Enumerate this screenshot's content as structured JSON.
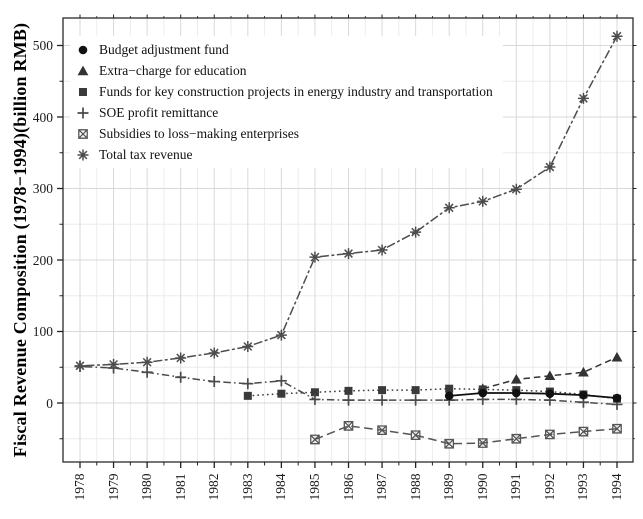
{
  "figure": {
    "background": "#ffffff",
    "ink_color": "#2b2b2b",
    "border_color": "#3a3a3a",
    "grid_major_color": "#d9d9d9",
    "grid_minor_color": "#ececec",
    "tick_color": "#222222"
  },
  "chart_data": {
    "type": "line",
    "title": "",
    "xlabel": "",
    "ylabel": "Fiscal Revenue Composition (1978−1994)(billion RMB)",
    "years": [
      1978,
      1979,
      1980,
      1981,
      1982,
      1983,
      1984,
      1985,
      1986,
      1987,
      1988,
      1989,
      1990,
      1991,
      1992,
      1993,
      1994
    ],
    "x_tick_labels": [
      "1978",
      "1979",
      "1980",
      "1981",
      "1982",
      "1983",
      "1984",
      "1985",
      "1986",
      "1987",
      "1988",
      "1989",
      "1990",
      "1991",
      "1992",
      "1993",
      "1994"
    ],
    "y_tick_labels": [
      "0",
      "100",
      "200",
      "300",
      "400",
      "500"
    ],
    "y_major_ticks": [
      0,
      100,
      200,
      300,
      400,
      500
    ],
    "y_minor_ticks": [
      -50,
      50,
      150,
      250,
      350,
      450
    ],
    "ylim": [
      -82,
      539
    ],
    "grid": "major+minor",
    "legend_position": "top-left-inside",
    "series": [
      {
        "name": "Budget adjustment fund",
        "marker": "circle",
        "linestyle": "solid",
        "color": "#111111",
        "x": [
          1989,
          1990,
          1991,
          1992,
          1993,
          1994
        ],
        "values": [
          10,
          14,
          14,
          13,
          11,
          7
        ]
      },
      {
        "name": "Extra−charge for education",
        "marker": "triangle",
        "linestyle": "dashed",
        "color": "#333333",
        "x": [
          1990,
          1991,
          1992,
          1993,
          1994
        ],
        "values": [
          20,
          33,
          38,
          43,
          64
        ]
      },
      {
        "name": "Funds for key construction projects in energy industry and transportation",
        "marker": "square",
        "linestyle": "dotted",
        "color": "#3a3a3a",
        "x": [
          1983,
          1984,
          1985,
          1986,
          1987,
          1988,
          1989,
          1990,
          1991,
          1992,
          1993,
          1994
        ],
        "values": [
          10,
          13,
          15,
          17,
          18,
          18,
          20,
          19,
          18,
          16,
          12,
          6
        ]
      },
      {
        "name": "SOE profit remittance",
        "marker": "plus",
        "linestyle": "dotdash",
        "color": "#4a4a4a",
        "x": [
          1978,
          1979,
          1980,
          1981,
          1982,
          1983,
          1984,
          1985,
          1986,
          1987,
          1988,
          1989,
          1990,
          1991,
          1992,
          1993,
          1994
        ],
        "values": [
          51,
          49,
          43,
          36,
          30,
          27,
          31,
          5,
          4,
          4,
          4,
          4,
          5,
          5,
          4,
          1,
          -2
        ]
      },
      {
        "name": "Subsidies to loss−making enterprises",
        "marker": "box-x",
        "linestyle": "longdash",
        "color": "#555555",
        "x": [
          1985,
          1986,
          1987,
          1988,
          1989,
          1990,
          1991,
          1992,
          1993,
          1994
        ],
        "values": [
          -51,
          -32,
          -38,
          -45,
          -57,
          -56,
          -50,
          -44,
          -40,
          -36
        ]
      },
      {
        "name": "Total tax revenue",
        "marker": "asterisk",
        "linestyle": "twodash",
        "color": "#4d4d4d",
        "x": [
          1978,
          1979,
          1980,
          1981,
          1982,
          1983,
          1984,
          1985,
          1986,
          1987,
          1988,
          1989,
          1990,
          1991,
          1992,
          1993,
          1994
        ],
        "values": [
          52,
          54,
          57,
          63,
          70,
          79,
          95,
          204,
          209,
          214,
          239,
          273,
          282,
          299,
          330,
          426,
          513
        ]
      }
    ]
  }
}
